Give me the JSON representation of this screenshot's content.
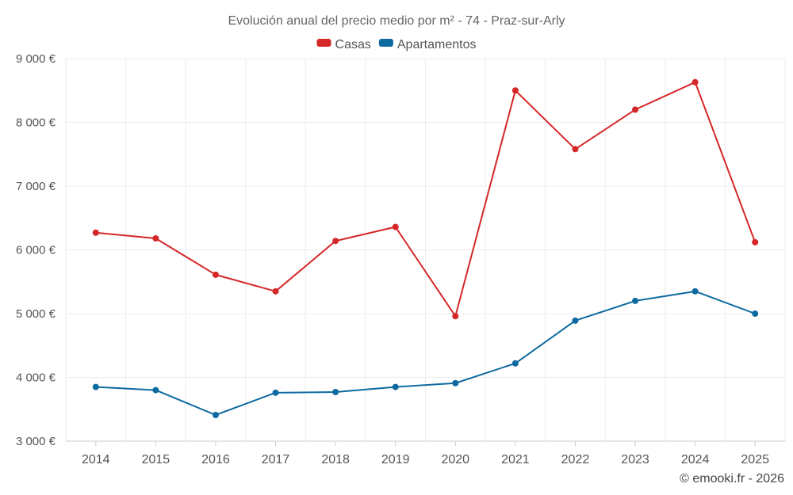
{
  "chart_data": {
    "type": "line",
    "title": "Evolución anual del precio medio por m² - 74 - Praz-sur-Arly",
    "categories": [
      "2014",
      "2015",
      "2016",
      "2017",
      "2018",
      "2019",
      "2020",
      "2021",
      "2022",
      "2023",
      "2024",
      "2025"
    ],
    "series": [
      {
        "name": "Casas",
        "color": "#d62728",
        "values": [
          6270,
          6180,
          5610,
          5350,
          6140,
          6360,
          4960,
          8500,
          7580,
          8200,
          8630,
          6120
        ]
      },
      {
        "name": "Apartamentos",
        "color": "#0d6aa0",
        "values": [
          3850,
          3800,
          3410,
          3760,
          3770,
          3850,
          3910,
          4220,
          4890,
          5200,
          5350,
          5000
        ]
      }
    ],
    "ylim": [
      3000,
      9000
    ],
    "yticks": [
      3000,
      4000,
      5000,
      6000,
      7000,
      8000,
      9000
    ],
    "ytick_labels": [
      "3 000 €",
      "4 000 €",
      "5 000 €",
      "6 000 €",
      "7 000 €",
      "8 000 €",
      "9 000 €"
    ],
    "xlabel": "",
    "ylabel": "",
    "grid": true,
    "legend_position": "top-center"
  },
  "credit": "© emooki.fr - 2026"
}
